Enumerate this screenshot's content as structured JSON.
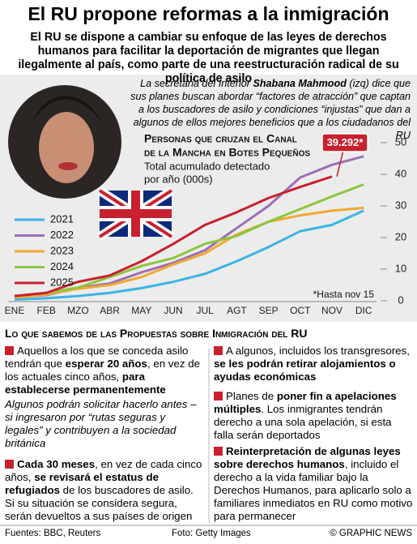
{
  "header": {
    "title": "El RU propone reformas a la inmigración",
    "subtitle": "El RU se dispone a cambiar su enfoque de las leyes de derechos humanos para facilitar la deportación de migrantes que llegan ilegalmente al país, como parte de una reestructuración radical de su política de asilo"
  },
  "caption": [
    {
      "text": "La secretaria del Interior ",
      "bold": false
    },
    {
      "text": "Shabana Mahmood",
      "bold": true
    },
    {
      "text": " (izq) dice que sus planes buscan abordar “factores de atracción” que captan a los buscadores de asilo y condiciones “injustas” que dan a algunos de ellos mejores beneficios que a los ciudadanos del RU",
      "bold": false
    }
  ],
  "chart_data": {
    "type": "line",
    "title": [
      "Personas que cruzan el Canal",
      "de la Mancha en Botes Pequeños"
    ],
    "subtitle": [
      "Total acumulado detectado",
      "por año (000s)"
    ],
    "note": "*Hasta nov 15",
    "categories": [
      "ENE",
      "FEB",
      "MZO",
      "ABR",
      "MAY",
      "JUN",
      "JUL",
      "AGT",
      "SEP",
      "OCT",
      "NOV",
      "DIC"
    ],
    "ylim": [
      0,
      50
    ],
    "yticks": [
      0,
      10,
      20,
      30,
      40,
      50
    ],
    "grid": false,
    "series": [
      {
        "name": "2021",
        "color": "#3ab4e6",
        "values": [
          0.4,
          0.8,
          1.5,
          2.5,
          4,
          6,
          8.5,
          12.5,
          17,
          22,
          24,
          28.5
        ]
      },
      {
        "name": "2022",
        "color": "#9b6fb5",
        "values": [
          1.2,
          1.8,
          4,
          5.5,
          9,
          12,
          16,
          23,
          30,
          39,
          43,
          45.7
        ]
      },
      {
        "name": "2023",
        "color": "#f0a830",
        "values": [
          1,
          2,
          3.8,
          5,
          7.5,
          11.5,
          15,
          21,
          25,
          27,
          28.5,
          29.4
        ]
      },
      {
        "name": "2024",
        "color": "#8cc63e",
        "values": [
          1.5,
          2.5,
          4.2,
          7.5,
          11,
          13.5,
          18,
          20.5,
          25,
          29,
          33,
          36.8
        ]
      },
      {
        "name": "2025",
        "color": "#c8202f",
        "values": [
          1.5,
          2.5,
          6,
          8,
          12.5,
          18,
          24,
          28,
          32.5,
          36,
          39.292,
          null
        ],
        "value_labels": [
          null,
          null,
          null,
          null,
          null,
          null,
          null,
          null,
          null,
          null,
          "39.292*",
          null
        ]
      }
    ]
  },
  "section_title": "Lo que sabemos de las Propuestas sobre Inmigración del RU",
  "bullets": {
    "left": [
      {
        "italic": false,
        "parts": [
          {
            "text": "Aquellos a los que se conceda asilo tendrán que ",
            "bold": false
          },
          {
            "text": "esperar 20 años",
            "bold": true
          },
          {
            "text": ", en vez de los actuales cinco años, ",
            "bold": false
          },
          {
            "text": "para establecerse permanentemente",
            "bold": true
          }
        ]
      },
      {
        "italic": true,
        "parts": [
          {
            "text": "Algunos podrán solicitar hacerlo antes – si ingresaron por “rutas seguras y legales” y contribuyen a la sociedad británica",
            "bold": false
          }
        ]
      },
      {
        "italic": false,
        "parts": [
          {
            "text": "Cada 30 meses",
            "bold": true
          },
          {
            "text": ", en vez de cada cinco años, ",
            "bold": false
          },
          {
            "text": "se revisará el estatus de refugiados",
            "bold": true
          },
          {
            "text": " de los buscadores de asilo. Si su situación se considera segura, serán devueltos a sus países de origen",
            "bold": false
          }
        ]
      }
    ],
    "right": [
      {
        "italic": false,
        "parts": [
          {
            "text": "A algunos, incluidos los transgresores, ",
            "bold": false
          },
          {
            "text": "se les podrán retirar alojamientos o ayudas económicas",
            "bold": true
          }
        ]
      },
      {
        "italic": false,
        "parts": [
          {
            "text": "Planes de ",
            "bold": false
          },
          {
            "text": "poner fin a apelaciones múltiples",
            "bold": true
          },
          {
            "text": ". Los inmigrantes tendrán derecho a una sola apelación, si esta falla serán deportados",
            "bold": false
          }
        ]
      },
      {
        "italic": false,
        "parts": [
          {
            "text": "Reinterpretación de algunas leyes sobre derechos humanos",
            "bold": true
          },
          {
            "text": ", incluido el derecho a la vida familiar bajo la Derechos Humanos, para aplicarlo solo a familiares inmediatos en RU como motivo para permanecer",
            "bold": false
          }
        ]
      }
    ]
  },
  "footer": {
    "sources": "Fuentes: BBC, Reuters",
    "photo": "Foto: Getty Images",
    "copyright": "© GRAPHIC NEWS"
  }
}
